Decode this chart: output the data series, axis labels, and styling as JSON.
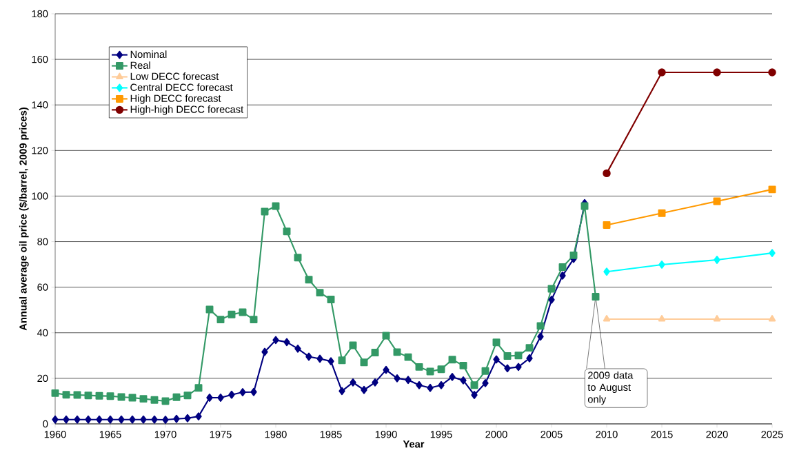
{
  "chart_data": {
    "type": "line",
    "xlabel": "Year",
    "ylabel": "Annual average oil price ($/barrel, 2009 prices)",
    "xlim": [
      1960,
      2025
    ],
    "xticks": [
      1960,
      1965,
      1970,
      1975,
      1980,
      1985,
      1990,
      1995,
      2000,
      2005,
      2010,
      2015,
      2020,
      2025
    ],
    "ylim": [
      0,
      180
    ],
    "yticks": [
      0,
      20,
      40,
      60,
      80,
      100,
      120,
      140,
      160,
      180
    ],
    "grid": "y",
    "legend": "top left",
    "annotations": [
      "2009 data to August only"
    ],
    "series": [
      {
        "name": "Nominal",
        "color": "#000080",
        "marker": "diamond",
        "x": [
          1960,
          1961,
          1962,
          1963,
          1964,
          1965,
          1966,
          1967,
          1968,
          1969,
          1970,
          1971,
          1972,
          1973,
          1974,
          1975,
          1976,
          1977,
          1978,
          1979,
          1980,
          1981,
          1982,
          1983,
          1984,
          1985,
          1986,
          1987,
          1988,
          1989,
          1990,
          1991,
          1992,
          1993,
          1994,
          1995,
          1996,
          1997,
          1998,
          1999,
          2000,
          2001,
          2002,
          2003,
          2004,
          2005,
          2006,
          2007,
          2008
        ],
        "values": [
          1.9,
          1.9,
          1.9,
          1.9,
          1.9,
          1.9,
          1.9,
          1.9,
          1.9,
          1.9,
          1.8,
          2.2,
          2.5,
          3.3,
          11.5,
          11.5,
          12.8,
          13.9,
          14.0,
          31.6,
          36.8,
          35.9,
          33.0,
          29.5,
          28.6,
          27.5,
          14.4,
          18.2,
          14.9,
          18.2,
          23.7,
          20.0,
          19.3,
          17.0,
          15.8,
          17.0,
          20.6,
          19.1,
          12.7,
          17.9,
          28.3,
          24.4,
          25.0,
          28.8,
          38.3,
          54.5,
          65.1,
          72.4,
          96.9
        ]
      },
      {
        "name": "Real",
        "color": "#339966",
        "marker": "square",
        "x": [
          1960,
          1961,
          1962,
          1963,
          1964,
          1965,
          1966,
          1967,
          1968,
          1969,
          1970,
          1971,
          1972,
          1973,
          1974,
          1975,
          1976,
          1977,
          1978,
          1979,
          1980,
          1981,
          1982,
          1983,
          1984,
          1985,
          1986,
          1987,
          1988,
          1989,
          1990,
          1991,
          1992,
          1993,
          1994,
          1995,
          1996,
          1997,
          1998,
          1999,
          2000,
          2001,
          2002,
          2003,
          2004,
          2005,
          2006,
          2007,
          2008,
          2009
        ],
        "values": [
          13.5,
          12.8,
          12.7,
          12.5,
          12.3,
          12.2,
          11.8,
          11.5,
          11.0,
          10.5,
          10.0,
          11.7,
          12.5,
          15.8,
          50.2,
          45.8,
          48.0,
          49.0,
          45.8,
          93.2,
          95.6,
          84.5,
          73.0,
          63.3,
          57.6,
          54.6,
          27.9,
          34.5,
          27.0,
          31.3,
          38.7,
          31.5,
          29.3,
          25.0,
          23.0,
          24.0,
          28.2,
          25.6,
          17.0,
          23.2,
          35.8,
          29.8,
          30.0,
          33.4,
          43.0,
          59.3,
          68.8,
          74.0,
          95.6,
          55.8
        ]
      },
      {
        "name": "Low DECC forecast",
        "color": "#ffcc99",
        "marker": "triangle",
        "x": [
          2010,
          2015,
          2020,
          2025
        ],
        "values": [
          46,
          46,
          46,
          46
        ]
      },
      {
        "name": "Central DECC forecast",
        "color": "#00ffff",
        "marker": "diamond",
        "x": [
          2010,
          2015,
          2020,
          2025
        ],
        "values": [
          66.8,
          69.9,
          72.0,
          75.0
        ]
      },
      {
        "name": "High DECC forecast",
        "color": "#ff9900",
        "marker": "square",
        "x": [
          2010,
          2015,
          2020,
          2025
        ],
        "values": [
          87.3,
          92.5,
          97.7,
          102.9
        ]
      },
      {
        "name": "High-high DECC forecast",
        "color": "#800000",
        "marker": "circle",
        "x": [
          2010,
          2015,
          2020,
          2025
        ],
        "values": [
          110,
          154.3,
          154.3,
          154.3
        ]
      }
    ]
  }
}
